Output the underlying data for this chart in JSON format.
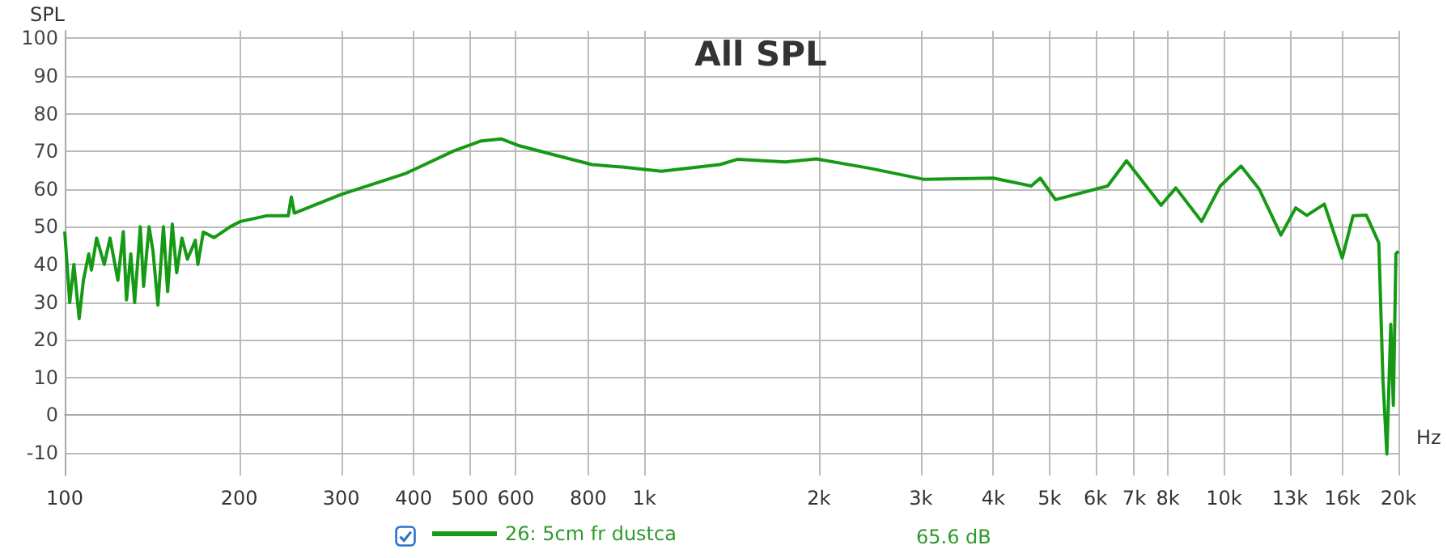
{
  "chart_data": {
    "type": "line",
    "title": "All SPL",
    "ylabel": "SPL",
    "annotations": [
      "65.6 dB"
    ],
    "xlim": [
      100,
      20000
    ],
    "ylim": [
      -16,
      102
    ],
    "log": "x",
    "grid": true,
    "legend": "bottom",
    "marker": "none",
    "line_style": "solid",
    "xticks": [
      {
        "value": 100,
        "label": "100"
      },
      {
        "value": 200,
        "label": "200"
      },
      {
        "value": 300,
        "label": "300"
      },
      {
        "value": 400,
        "label": "400"
      },
      {
        "value": 500,
        "label": "500"
      },
      {
        "value": 600,
        "label": "600"
      },
      {
        "value": 800,
        "label": "800"
      },
      {
        "value": 1000,
        "label": "1k"
      },
      {
        "value": 2000,
        "label": "2k"
      },
      {
        "value": 3000,
        "label": "3k"
      },
      {
        "value": 4000,
        "label": "4k"
      },
      {
        "value": 5000,
        "label": "5k"
      },
      {
        "value": 6000,
        "label": "6k"
      },
      {
        "value": 7000,
        "label": "7k"
      },
      {
        "value": 8000,
        "label": "8k"
      },
      {
        "value": 10000,
        "label": "10k"
      },
      {
        "value": 13000,
        "label": "13k"
      },
      {
        "value": 16000,
        "label": "16k"
      },
      {
        "value": 20000,
        "label": "20k"
      }
    ],
    "xlabel": "Hz",
    "yticks": [
      -10,
      0,
      10,
      20,
      30,
      40,
      50,
      60,
      70,
      80,
      90,
      100
    ],
    "series": [
      {
        "name": "26: 5cm fr dustca",
        "color": "#169a16",
        "x": [
          100,
          102,
          103.7,
          105.9,
          107.7,
          110,
          111.2,
          113.5,
          117,
          119.7,
          123.5,
          126.2,
          127.8,
          130,
          132,
          135,
          136.8,
          139.8,
          142,
          144.8,
          148,
          150.5,
          153.3,
          156,
          159.3,
          162.8,
          168,
          169.7,
          173.4,
          181,
          193,
          201,
          223,
          243,
          246,
          249,
          300,
          387,
          469,
          521,
          567,
          605,
          686,
          812,
          923,
          1070,
          1350,
          1450,
          1750,
          1980,
          2450,
          3030,
          4000,
          4650,
          4820,
          5120,
          6300,
          6790,
          7790,
          8260,
          9150,
          9855,
          10700,
          11500,
          12540,
          13300,
          13900,
          14900,
          16000,
          16700,
          17600,
          18500,
          18800,
          19100,
          19400,
          19600,
          19800,
          20000
        ],
        "values": [
          48.7,
          29.9,
          40,
          25.6,
          35.8,
          42.8,
          38.5,
          47,
          40,
          47,
          35.8,
          48.7,
          30.6,
          42.8,
          29.9,
          50,
          34.2,
          50,
          43.5,
          29.2,
          50,
          32.8,
          50.7,
          37.8,
          47,
          41.4,
          46.4,
          40,
          48.6,
          47.1,
          50,
          51.4,
          52.9,
          52.9,
          57.9,
          53.6,
          58.6,
          64.1,
          70.1,
          72.7,
          73.3,
          71.6,
          69.4,
          66.5,
          65.8,
          64.7,
          66.5,
          67.9,
          67.2,
          68,
          65.5,
          62.6,
          62.9,
          60.8,
          62.9,
          57.2,
          60.8,
          67.5,
          55.7,
          60.3,
          51.4,
          60.8,
          66.1,
          60,
          47.8,
          55,
          53,
          56,
          41.7,
          52.9,
          53.1,
          45.7,
          9.9,
          -10.3,
          24.1,
          2.6,
          42.8,
          43.5
        ]
      }
    ]
  }
}
